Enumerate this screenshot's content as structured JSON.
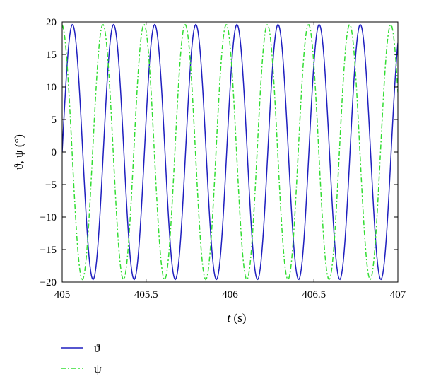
{
  "chart_data": {
    "type": "line",
    "title": "",
    "xlabel_symbol": "t",
    "xlabel_unit": " (s)",
    "ylabel": "ϑ, ψ (°)",
    "xlim": [
      405,
      407
    ],
    "ylim": [
      -20,
      20
    ],
    "x_ticks": [
      405,
      405.5,
      406,
      406.5,
      407
    ],
    "x_tick_labels": [
      "405",
      "405.5",
      "406",
      "406.5",
      "407"
    ],
    "y_ticks": [
      -20,
      -15,
      -10,
      -5,
      0,
      5,
      10,
      15,
      20
    ],
    "y_tick_labels": [
      "−20",
      "−15",
      "−10",
      "−5",
      "0",
      "5",
      "10",
      "15",
      "20"
    ],
    "grid": false,
    "legend_position": "below plot, left",
    "x_sampling": {
      "start": 405,
      "end": 407,
      "step": 0.005
    },
    "series": [
      {
        "name": "ϑ",
        "style": "solid",
        "color": "#1f1fbf",
        "form": "amplitude * sin(2*pi*(t - t0)/period)",
        "amplitude": 19.6,
        "period": 0.245,
        "t0": 405.0
      },
      {
        "name": "ψ",
        "style": "dash-dot",
        "color": "#33dd33",
        "form": "amplitude * sin(2*pi*(t - t0)/period)",
        "amplitude": 19.6,
        "period": 0.245,
        "t0": 404.9365
      }
    ]
  }
}
